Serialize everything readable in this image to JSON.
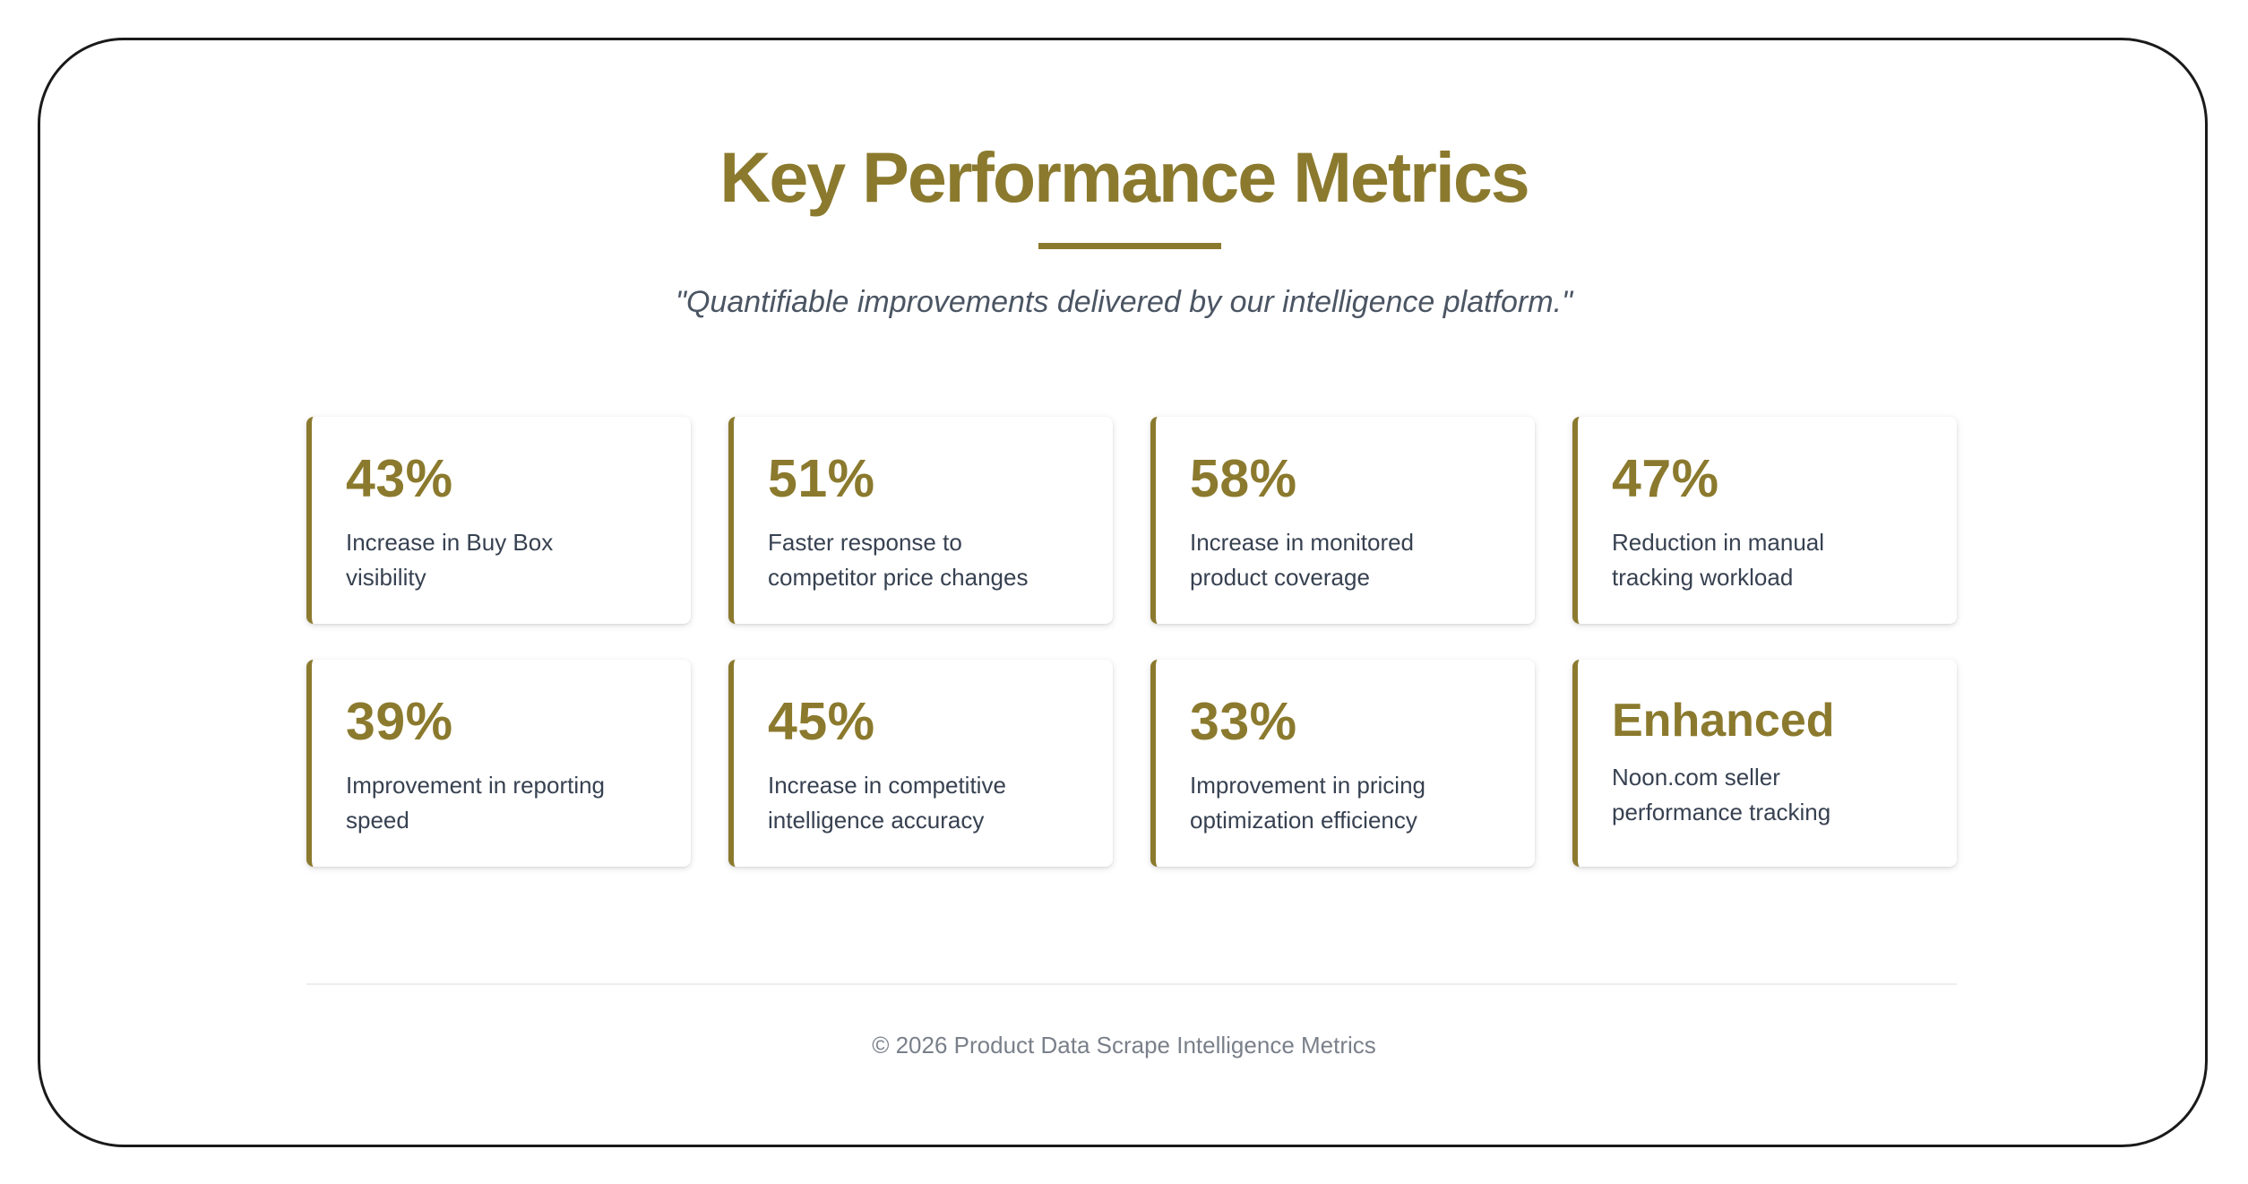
{
  "header": {
    "title": "Key Performance Metrics",
    "subtitle": "\"Quantifiable improvements delivered by our intelligence platform.\""
  },
  "metrics": [
    {
      "value": "43%",
      "description": "Increase in Buy Box visibility"
    },
    {
      "value": "51%",
      "description": "Faster response to competitor price changes"
    },
    {
      "value": "58%",
      "description": "Increase in monitored product coverage"
    },
    {
      "value": "47%",
      "description": "Reduction in manual tracking workload"
    },
    {
      "value": "39%",
      "description": "Improvement in reporting speed"
    },
    {
      "value": "45%",
      "description": "Increase in competitive intelligence accuracy"
    },
    {
      "value": "33%",
      "description": "Improvement in pricing optimization efficiency"
    },
    {
      "value": "Enhanced",
      "description": "Noon.com seller performance tracking"
    }
  ],
  "footer": {
    "text": "© 2026 Product Data Scrape Intelligence Metrics"
  },
  "colors": {
    "accent": "#8b7a2e",
    "body_text": "#374151",
    "subtitle_text": "#4b5563",
    "footer_text": "#7a808a"
  }
}
